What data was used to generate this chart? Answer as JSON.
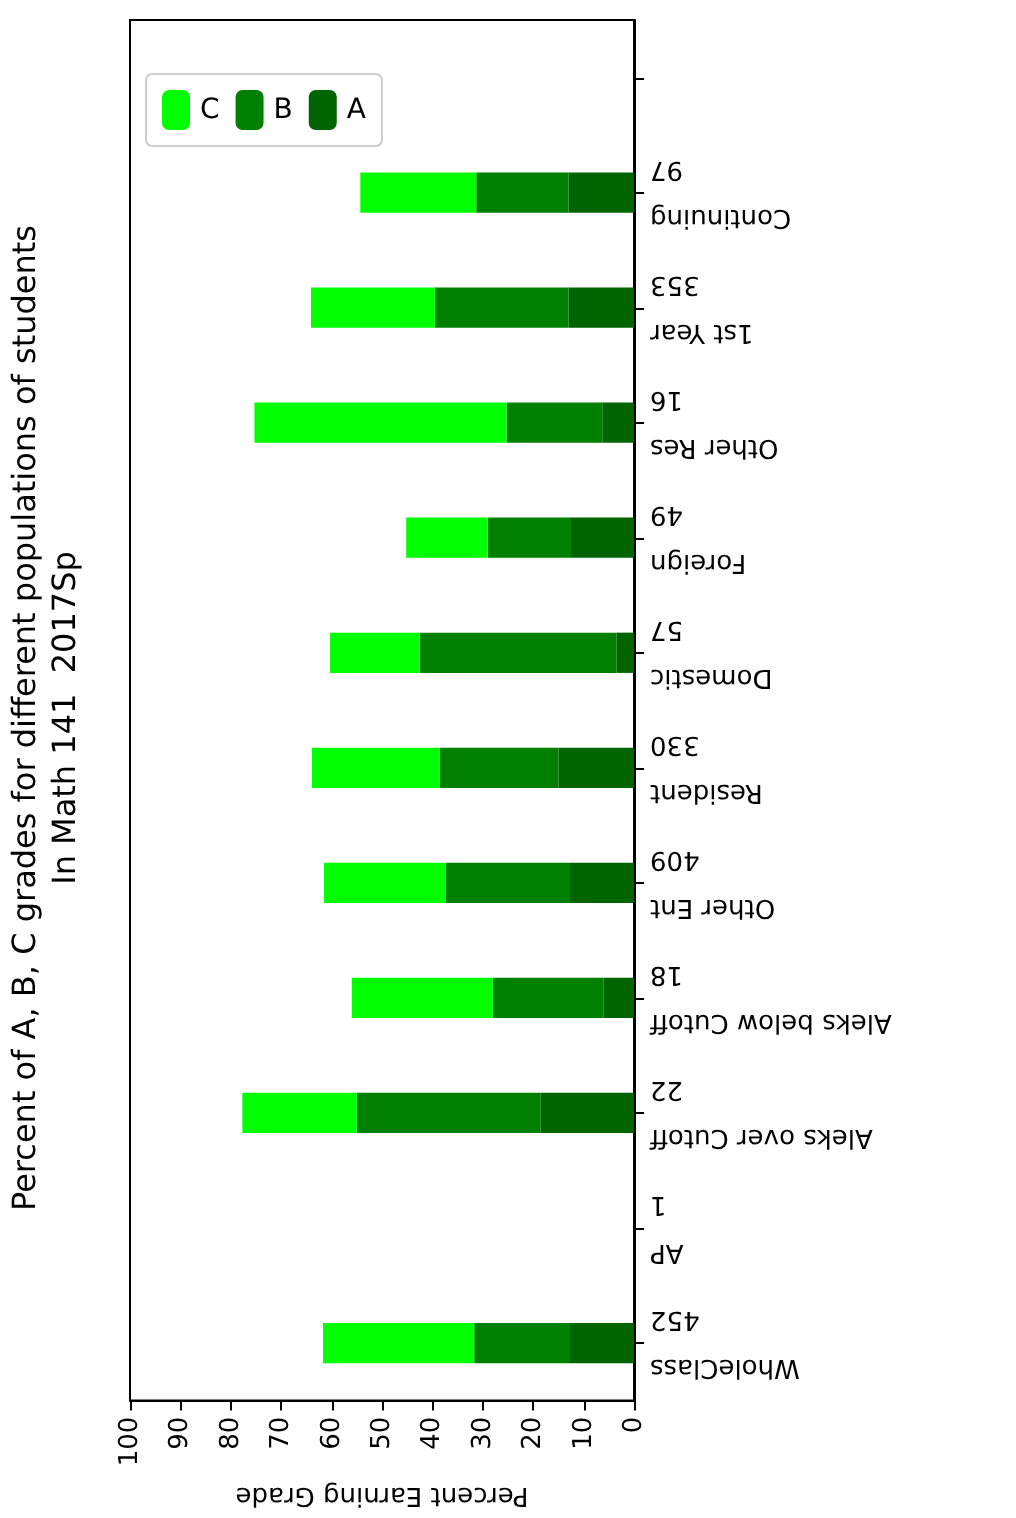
{
  "chart_data": {
    "type": "bar",
    "orientation": "horizontal",
    "title": "Percent of A, B, C grades for different populations of students\nIn Math 141  2017Sp",
    "xlabel": "Percent Earning Grade",
    "categories": [
      null,
      "Continuing\n97",
      "1st Year\n353",
      "Other Res\n16",
      "Foreign\n49",
      "Domestic\n57",
      "Resident\n330",
      "Other Ent\n409",
      "Aleks below Cutoff\n18",
      "Aleks over Cutoff\n22",
      "AP\n1",
      "WholeClass\n452"
    ],
    "stacked": true,
    "series": [
      {
        "name": "A",
        "color": "#006400",
        "values": [
          null,
          13,
          13,
          6.3,
          12.5,
          3.5,
          15,
          12.7,
          6,
          18.5,
          0,
          12.7
        ]
      },
      {
        "name": "B",
        "color": "#008000",
        "values": [
          null,
          18.3,
          26.5,
          19,
          16.5,
          39,
          23.5,
          24.6,
          22,
          36.5,
          0,
          19
        ]
      },
      {
        "name": "C",
        "color": "#00ff00",
        "values": [
          null,
          23,
          24.6,
          50,
          16.2,
          17.8,
          25.4,
          24.2,
          28,
          22.7,
          0,
          30
        ]
      }
    ],
    "xlim": [
      100,
      0
    ],
    "xticks": [
      100,
      90,
      80,
      70,
      60,
      50,
      40,
      30,
      20,
      10,
      0
    ],
    "grid": false,
    "legend": "top left"
  }
}
